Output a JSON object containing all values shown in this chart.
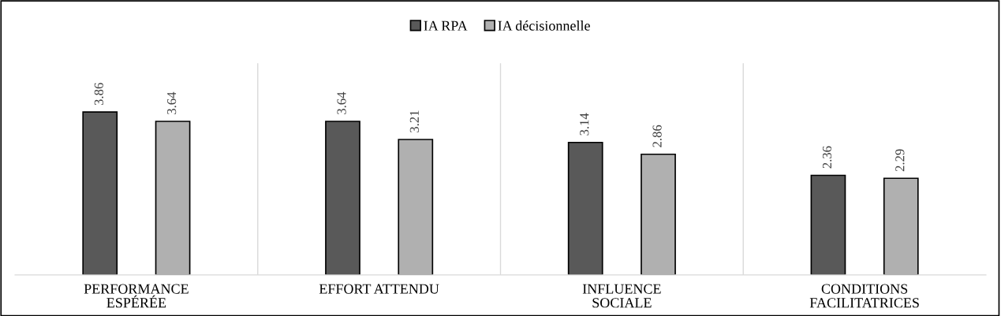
{
  "chart_data": {
    "type": "bar",
    "categories": [
      "PERFORMANCE ESPÉRÉE",
      "EFFORT ATTENDU",
      "INFLUENCE SOCIALE",
      "CONDITIONS FACILITATRICES"
    ],
    "series": [
      {
        "name": "IA RPA",
        "color": "#595959",
        "values": [
          3.86,
          3.64,
          3.14,
          2.36
        ]
      },
      {
        "name": "IA décisionnelle",
        "color": "#b0b0b0",
        "values": [
          3.64,
          3.21,
          2.86,
          2.29
        ]
      }
    ],
    "data_labels": true,
    "legend": "top",
    "grid": false
  }
}
